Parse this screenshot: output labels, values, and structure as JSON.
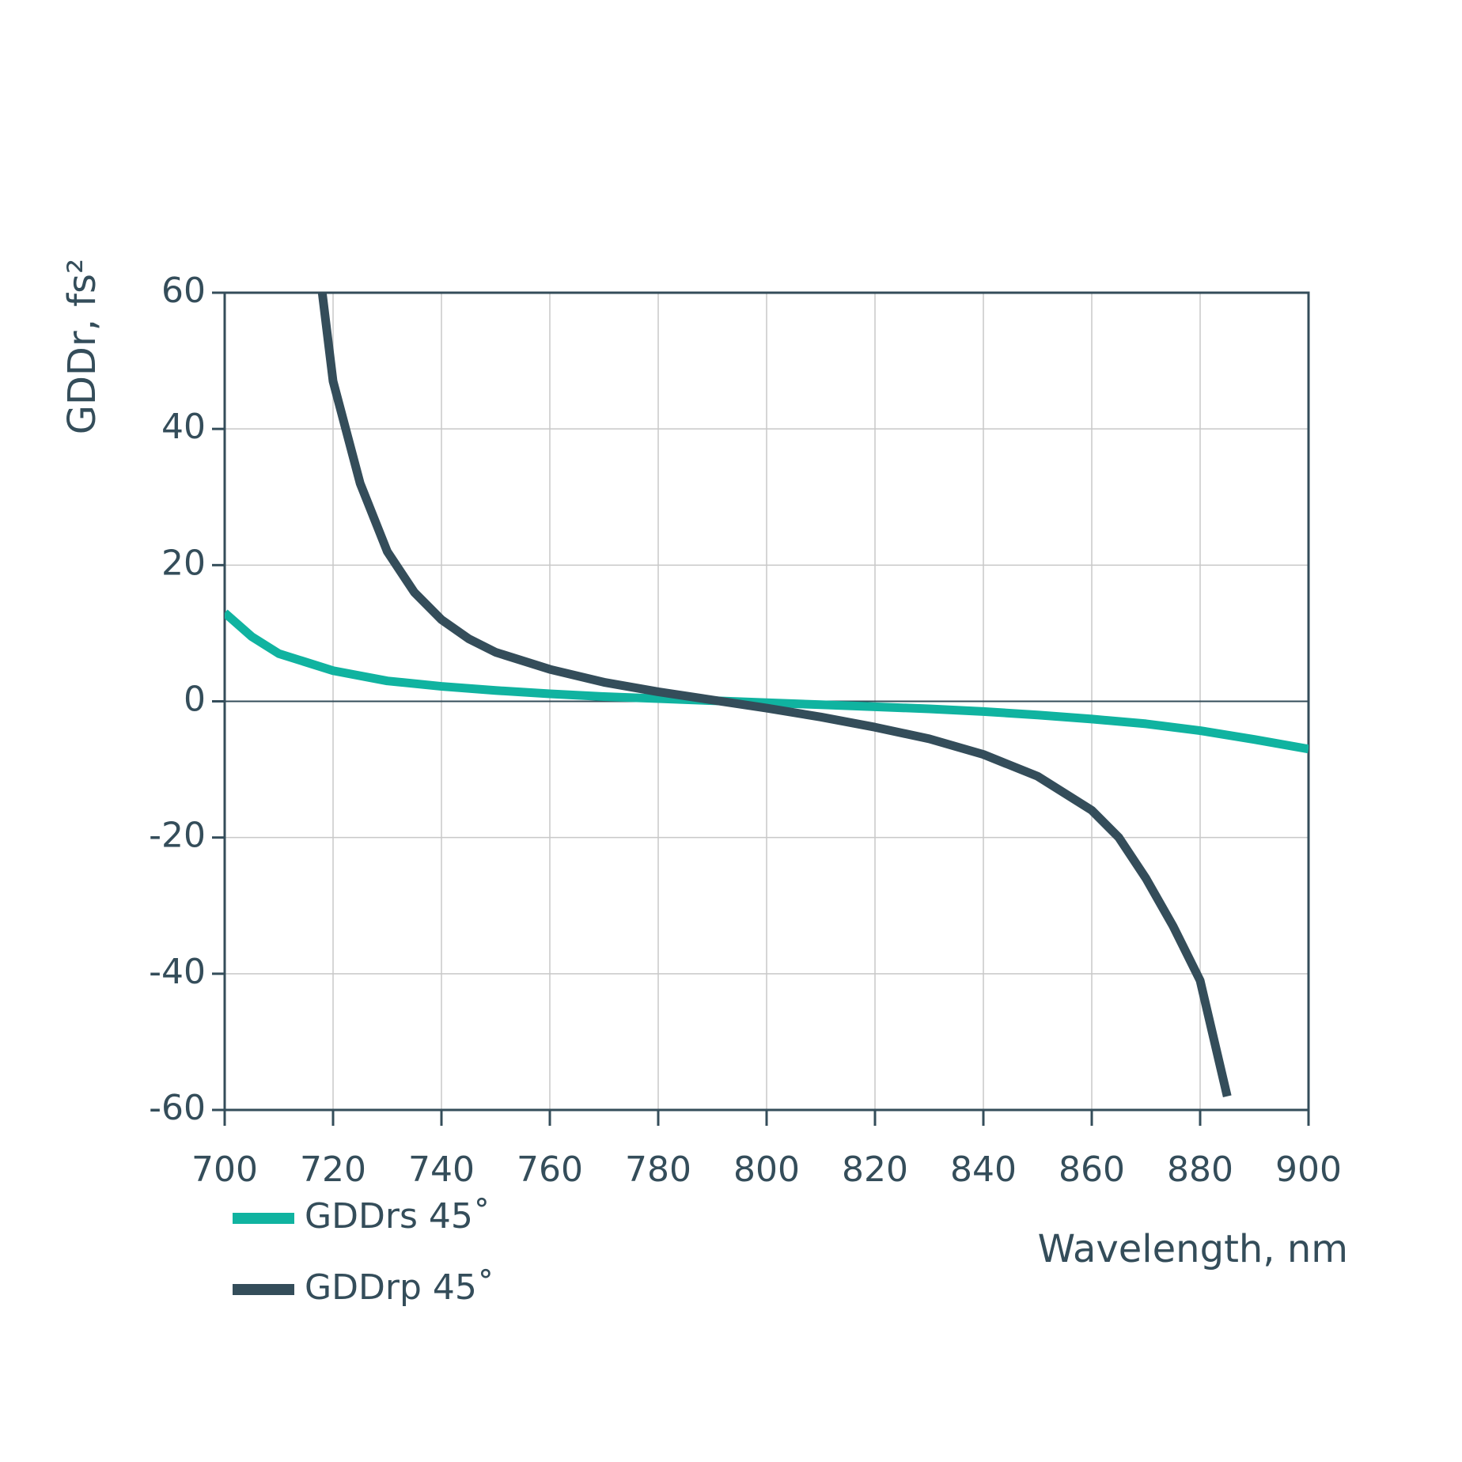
{
  "chart_data": {
    "type": "line",
    "x_label": "Wavelength, nm",
    "y_label": "GDDr, fs²",
    "xlim": [
      700,
      900
    ],
    "xticks": [
      700,
      720,
      740,
      760,
      780,
      800,
      820,
      840,
      860,
      880,
      900
    ],
    "ylim": [
      -60,
      60
    ],
    "yticks": [
      -60,
      -40,
      -20,
      0,
      20,
      40,
      60
    ],
    "grid": true,
    "zero_line": true,
    "legend": "bottom-left",
    "series": [
      {
        "name": "GDDrs 45˚",
        "color": "#10b3a0",
        "x": [
          700,
          705,
          710,
          720,
          730,
          740,
          750,
          760,
          770,
          780,
          790,
          800,
          810,
          820,
          830,
          840,
          850,
          860,
          870,
          880,
          890,
          900
        ],
        "values": [
          13,
          9.5,
          7,
          4.5,
          3,
          2.2,
          1.6,
          1.1,
          0.7,
          0.4,
          0.1,
          -0.2,
          -0.5,
          -0.8,
          -1.1,
          -1.5,
          -2,
          -2.6,
          -3.3,
          -4.3,
          -5.6,
          -7
        ]
      },
      {
        "name": "GDDrp 45˚",
        "color": "#344d5a",
        "x": [
          718,
          720,
          725,
          730,
          735,
          740,
          745,
          750,
          760,
          770,
          780,
          790,
          800,
          810,
          820,
          830,
          840,
          850,
          860,
          865,
          870,
          875,
          880,
          885
        ],
        "values": [
          60,
          47,
          32,
          22,
          16,
          12,
          9.2,
          7.2,
          4.7,
          2.8,
          1.4,
          0.2,
          -1,
          -2.3,
          -3.8,
          -5.5,
          -7.8,
          -11,
          -16,
          -20,
          -26,
          -33,
          -41,
          -58
        ]
      }
    ]
  }
}
